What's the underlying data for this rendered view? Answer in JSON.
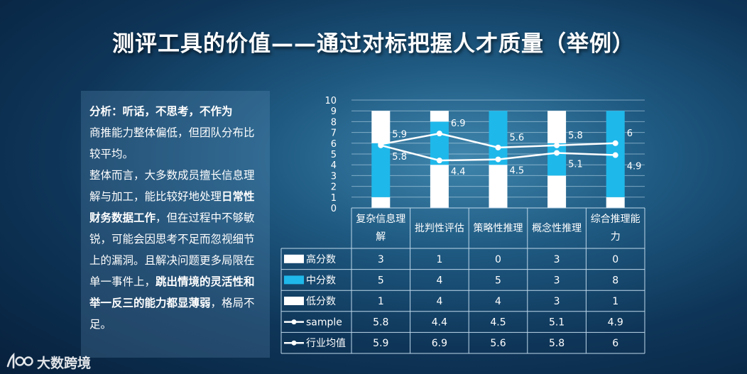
{
  "title": "测评工具的价值——通过对标把握人才质量（举例）",
  "analysis": {
    "heading": "分析：听话，不思考，不作为",
    "line1": "商推能力整体偏低，但团队分布比较平均。",
    "p2_a": "整体而言，大多数成员擅长信息理解与加工，能比较好地处理",
    "p2_bold1": "日常性财务数据工作",
    "p2_b": "，但在过程中不够敏锐，可能会因思考不足而忽视细节上的漏洞。且解决问题更多局限在单一事件上，",
    "p2_bold2": "跳出情境的灵活性和举一反三的能力都显薄弱",
    "p2_c": "，格局不足。"
  },
  "logo": {
    "text": "大数跨境"
  },
  "chart_data": {
    "type": "bar",
    "stacked": true,
    "categories": [
      "复杂信息理解",
      "批判性评估",
      "策略性推理",
      "概念性推理",
      "综合推理能力"
    ],
    "category_lines": [
      [
        "复杂信息理",
        "解"
      ],
      [
        "批判性评估"
      ],
      [
        "策略性推理"
      ],
      [
        "概念性推理"
      ],
      [
        "综合推理能",
        "力"
      ]
    ],
    "series": [
      {
        "name": "高分数",
        "kind": "bar",
        "color": "#ffffff",
        "values": [
          3,
          1,
          0,
          3,
          0
        ]
      },
      {
        "name": "中分数",
        "kind": "bar",
        "color": "#1fb8ea",
        "values": [
          5,
          4,
          5,
          3,
          8
        ]
      },
      {
        "name": "低分数",
        "kind": "bar",
        "color": "#ffffff",
        "values": [
          1,
          4,
          4,
          3,
          1
        ]
      },
      {
        "name": "sample",
        "kind": "line",
        "color": "#ffffff",
        "values": [
          5.8,
          4.4,
          4.5,
          5.1,
          4.9
        ]
      },
      {
        "name": "行业均值",
        "kind": "line",
        "color": "#ffffff",
        "values": [
          5.9,
          6.9,
          5.6,
          5.8,
          6
        ]
      }
    ],
    "y_ticks": [
      0,
      1,
      2,
      3,
      4,
      5,
      6,
      7,
      8,
      9,
      10
    ],
    "ylim": [
      0,
      10
    ],
    "grid": true,
    "data_table": true
  }
}
